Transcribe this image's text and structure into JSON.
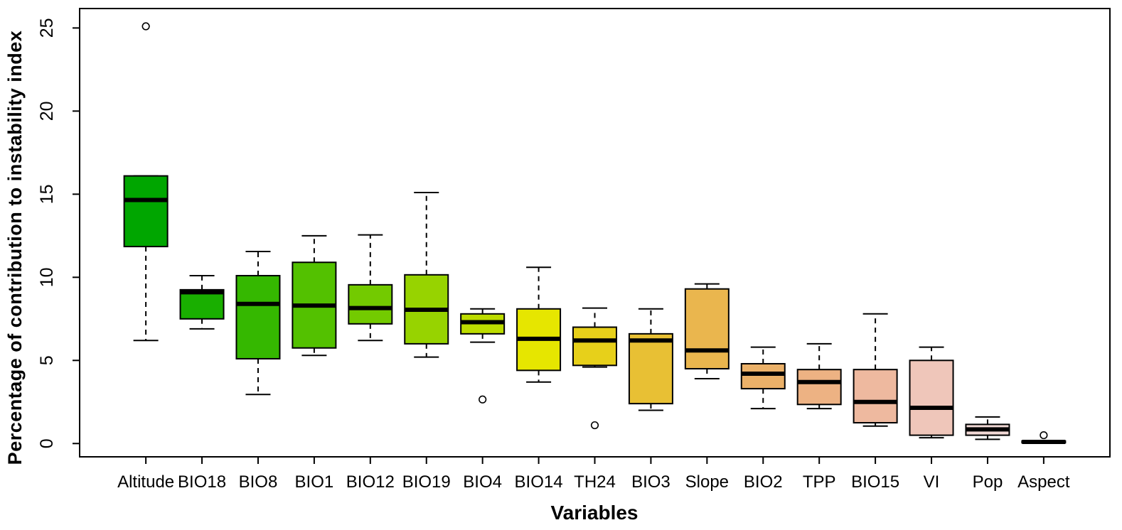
{
  "chart_data": {
    "type": "boxplot",
    "title": "",
    "xlabel": "Variables",
    "ylabel": "Percentage of contribution to instability index",
    "ylim": [
      0,
      25.5
    ],
    "yticks": [
      0,
      5,
      10,
      15,
      20,
      25
    ],
    "grid": false,
    "frame": true,
    "legend_position": "none",
    "categories": [
      "Altitude",
      "BIO18",
      "BIO8",
      "BIO1",
      "BIO12",
      "BIO19",
      "BIO4",
      "BIO14",
      "TH24",
      "BIO3",
      "Slope",
      "BIO2",
      "TPP",
      "BIO15",
      "VI",
      "Pop",
      "Aspect"
    ],
    "series": [
      {
        "name": "Altitude",
        "color": "#00A600",
        "whisker_low": 6.2,
        "q1": 11.85,
        "median": 14.65,
        "q3": 16.1,
        "whisker_high": 16.1,
        "outliers": [
          25.1
        ]
      },
      {
        "name": "BIO18",
        "color": "#19AF00",
        "whisker_low": 6.9,
        "q1": 7.5,
        "median": 9.1,
        "q3": 9.25,
        "whisker_high": 10.1,
        "outliers": []
      },
      {
        "name": "BIO8",
        "color": "#35B800",
        "whisker_low": 2.95,
        "q1": 5.1,
        "median": 8.4,
        "q3": 10.1,
        "whisker_high": 11.55,
        "outliers": []
      },
      {
        "name": "BIO1",
        "color": "#53C100",
        "whisker_low": 5.3,
        "q1": 5.75,
        "median": 8.3,
        "q3": 10.9,
        "whisker_high": 12.5,
        "outliers": []
      },
      {
        "name": "BIO12",
        "color": "#73CA00",
        "whisker_low": 6.2,
        "q1": 7.2,
        "median": 8.15,
        "q3": 9.55,
        "whisker_high": 12.55,
        "outliers": []
      },
      {
        "name": "BIO19",
        "color": "#97D300",
        "whisker_low": 5.2,
        "q1": 6.0,
        "median": 8.05,
        "q3": 10.15,
        "whisker_high": 15.1,
        "outliers": []
      },
      {
        "name": "BIO4",
        "color": "#BDDC00",
        "whisker_low": 6.1,
        "q1": 6.6,
        "median": 7.3,
        "q3": 7.8,
        "whisker_high": 8.1,
        "outliers": [
          2.65
        ]
      },
      {
        "name": "BIO14",
        "color": "#E6E600",
        "whisker_low": 3.7,
        "q1": 4.4,
        "median": 6.3,
        "q3": 8.1,
        "whisker_high": 10.6,
        "outliers": []
      },
      {
        "name": "TH24",
        "color": "#E7D01A",
        "whisker_low": 4.6,
        "q1": 4.7,
        "median": 6.2,
        "q3": 7.0,
        "whisker_high": 8.15,
        "outliers": [
          1.1
        ]
      },
      {
        "name": "BIO3",
        "color": "#E8C034",
        "whisker_low": 2.0,
        "q1": 2.4,
        "median": 6.2,
        "q3": 6.6,
        "whisker_high": 8.1,
        "outliers": []
      },
      {
        "name": "Slope",
        "color": "#EAB64E",
        "whisker_low": 3.9,
        "q1": 4.5,
        "median": 5.6,
        "q3": 9.3,
        "whisker_high": 9.6,
        "outliers": []
      },
      {
        "name": "BIO2",
        "color": "#EBB169",
        "whisker_low": 2.1,
        "q1": 3.3,
        "median": 4.2,
        "q3": 4.8,
        "whisker_high": 5.8,
        "outliers": []
      },
      {
        "name": "TPP",
        "color": "#EDB283",
        "whisker_low": 2.1,
        "q1": 2.35,
        "median": 3.7,
        "q3": 4.45,
        "whisker_high": 6.0,
        "outliers": []
      },
      {
        "name": "BIO15",
        "color": "#EEB99F",
        "whisker_low": 1.05,
        "q1": 1.25,
        "median": 2.5,
        "q3": 4.45,
        "whisker_high": 7.8,
        "outliers": []
      },
      {
        "name": "VI",
        "color": "#EFC6BA",
        "whisker_low": 0.35,
        "q1": 0.5,
        "median": 2.15,
        "q3": 5.0,
        "whisker_high": 5.8,
        "outliers": []
      },
      {
        "name": "Pop",
        "color": "#F1D9D6",
        "whisker_low": 0.25,
        "q1": 0.5,
        "median": 0.85,
        "q3": 1.15,
        "whisker_high": 1.6,
        "outliers": []
      },
      {
        "name": "Aspect",
        "color": "#F2F2F2",
        "whisker_low": 0.05,
        "q1": 0.05,
        "median": 0.1,
        "q3": 0.15,
        "whisker_high": 0.15,
        "outliers": [
          0.5
        ]
      }
    ],
    "style": {
      "box_border_color": "#000000",
      "median_color": "#000000",
      "whisker_color": "#000000",
      "outlier_fill": "#FFFFFF",
      "outlier_stroke": "#000000",
      "background": "#FFFFFF"
    }
  }
}
